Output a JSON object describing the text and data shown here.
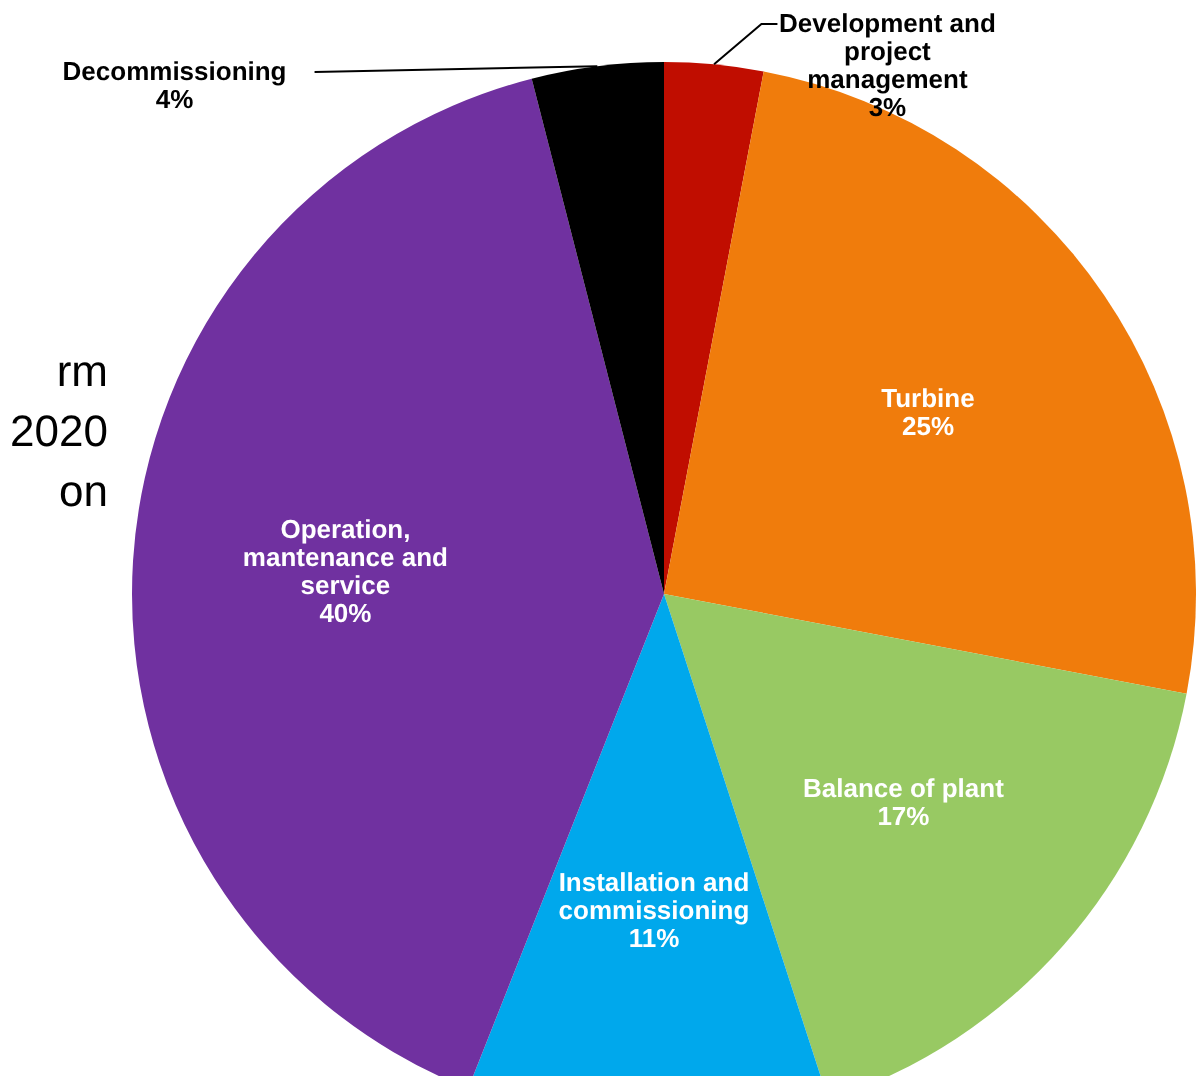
{
  "chart_data": {
    "type": "pie",
    "categories": [
      "Development and project management",
      "Turbine",
      "Balance of plant",
      "Installation and commissioning",
      "Operation, mantenance and service",
      "Decommissioning"
    ],
    "values": [
      3,
      25,
      17,
      11,
      40,
      4
    ],
    "colors": [
      "#c00d00",
      "#f07c0c",
      "#98c963",
      "#00a8ec",
      "#7031a0",
      "#000000"
    ],
    "value_labels": [
      "3%",
      "25%",
      "17%",
      "11%",
      "40%",
      "4%"
    ],
    "annotations": [
      "rm",
      "2020",
      "on"
    ]
  }
}
